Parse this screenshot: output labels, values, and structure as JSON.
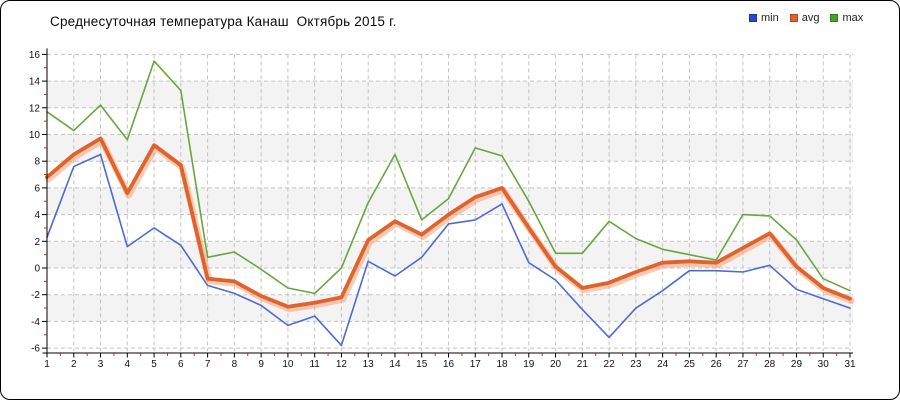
{
  "title": "Среднесуточная температура Канаш  Октябрь 2015 г.",
  "legend": {
    "items": [
      {
        "label": "min",
        "color": "#2a49cf"
      },
      {
        "label": "avg",
        "color": "#e0622c"
      },
      {
        "label": "max",
        "color": "#49a322"
      }
    ]
  },
  "chart_data": {
    "type": "line",
    "title": "Среднесуточная температура Канаш  Октябрь 2015 г.",
    "xlabel": "",
    "ylabel": "",
    "ylim": [
      -6,
      16
    ],
    "ytick_step": 2,
    "grid": true,
    "legend_position": "top-right",
    "categories": [
      1,
      2,
      3,
      4,
      5,
      6,
      7,
      8,
      9,
      10,
      11,
      12,
      13,
      14,
      15,
      16,
      17,
      18,
      19,
      20,
      21,
      22,
      23,
      24,
      25,
      26,
      27,
      28,
      29,
      30,
      31
    ],
    "series": [
      {
        "name": "min",
        "color": "#4d6bd6",
        "legend_color": "#2a49cf",
        "width": 1.6,
        "values": [
          2.3,
          7.6,
          8.5,
          1.6,
          3.0,
          1.7,
          -1.3,
          -1.9,
          -2.8,
          -4.3,
          -3.6,
          -5.8,
          0.5,
          -0.6,
          0.8,
          3.3,
          3.6,
          4.8,
          0.4,
          -0.9,
          -3.1,
          -5.2,
          -3.0,
          -1.7,
          -0.2,
          -0.2,
          -0.3,
          0.2,
          -1.6,
          -2.3,
          -3.0
        ]
      },
      {
        "name": "avg",
        "color": "#e0622c",
        "legend_color": "#e0622c",
        "width": 3.8,
        "halo": "#f2a172",
        "values": [
          6.8,
          8.5,
          9.7,
          5.6,
          9.2,
          7.7,
          -0.8,
          -1.0,
          -2.1,
          -2.9,
          -2.6,
          -2.2,
          2.1,
          3.5,
          2.5,
          4.0,
          5.3,
          6.0,
          3.0,
          0.1,
          -1.5,
          -1.1,
          -0.3,
          0.4,
          0.5,
          0.4,
          1.5,
          2.6,
          0.1,
          -1.5,
          -2.3
        ]
      },
      {
        "name": "max",
        "color": "#67a73e",
        "legend_color": "#49a322",
        "width": 1.6,
        "values": [
          11.7,
          10.3,
          12.2,
          9.6,
          15.5,
          13.3,
          0.8,
          1.2,
          -0.1,
          -1.5,
          -1.9,
          0.0,
          4.9,
          8.5,
          3.6,
          5.2,
          9.0,
          8.4,
          5.0,
          1.1,
          1.1,
          3.5,
          2.2,
          1.4,
          1.0,
          0.6,
          4.0,
          3.9,
          2.1,
          -0.8,
          -1.7
        ]
      }
    ]
  }
}
